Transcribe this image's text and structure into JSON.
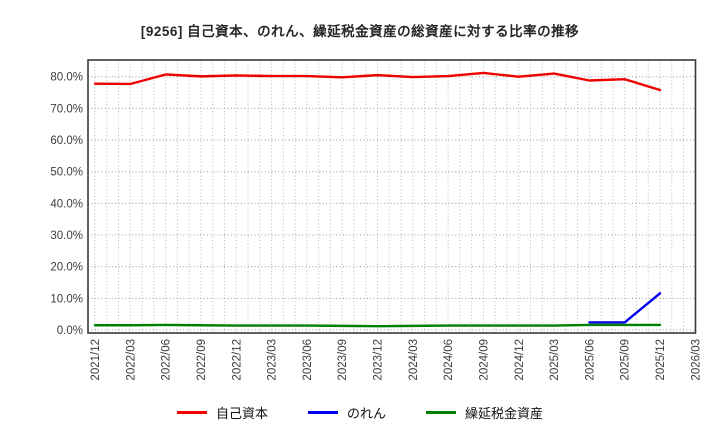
{
  "chart_data": {
    "type": "line",
    "title": "[9256]  自己資本、のれん、繰延税金資産の総資産に対する比率の推移",
    "x_labels": [
      "2021/12",
      "2022/03",
      "2022/06",
      "2022/09",
      "2022/12",
      "2023/03",
      "2023/06",
      "2023/09",
      "2023/12",
      "2024/03",
      "2024/06",
      "2024/09",
      "2024/12",
      "2025/03",
      "2025/06",
      "2025/09",
      "2025/12",
      "2026/03"
    ],
    "y_ticks": [
      0,
      10,
      20,
      30,
      40,
      50,
      60,
      70,
      80
    ],
    "y_tick_labels": [
      "0.0%",
      "10.0%",
      "20.0%",
      "30.0%",
      "40.0%",
      "50.0%",
      "60.0%",
      "70.0%",
      "80.0%"
    ],
    "ylim": [
      -1.2,
      85.5
    ],
    "grid": "dotted, horizontal every 10%, vertical monthly minor lines",
    "legend_position": "bottom",
    "series": [
      {
        "name": "自己資本",
        "color": "#ee0000",
        "x_indices": [
          0,
          1,
          2,
          3,
          4,
          5,
          6,
          7,
          8,
          9,
          10,
          11,
          12,
          13,
          14,
          15,
          16
        ],
        "values": [
          77.8,
          77.7,
          80.7,
          80.1,
          80.4,
          80.2,
          80.2,
          79.8,
          80.5,
          79.9,
          80.2,
          81.2,
          80.0,
          81.0,
          78.8,
          79.2,
          75.8
        ]
      },
      {
        "name": "のれん",
        "color": "#0000ee",
        "x_indices": [
          14,
          15,
          16
        ],
        "values": [
          2.4,
          2.4,
          11.6
        ]
      },
      {
        "name": "繰延税金資産",
        "color": "#008000",
        "x_indices": [
          0,
          1,
          2,
          3,
          4,
          5,
          6,
          7,
          8,
          9,
          10,
          11,
          12,
          13,
          14,
          15,
          16
        ],
        "values": [
          1.5,
          1.5,
          1.6,
          1.5,
          1.4,
          1.4,
          1.4,
          1.3,
          1.2,
          1.3,
          1.4,
          1.4,
          1.4,
          1.4,
          1.6,
          1.6,
          1.6
        ]
      }
    ]
  }
}
